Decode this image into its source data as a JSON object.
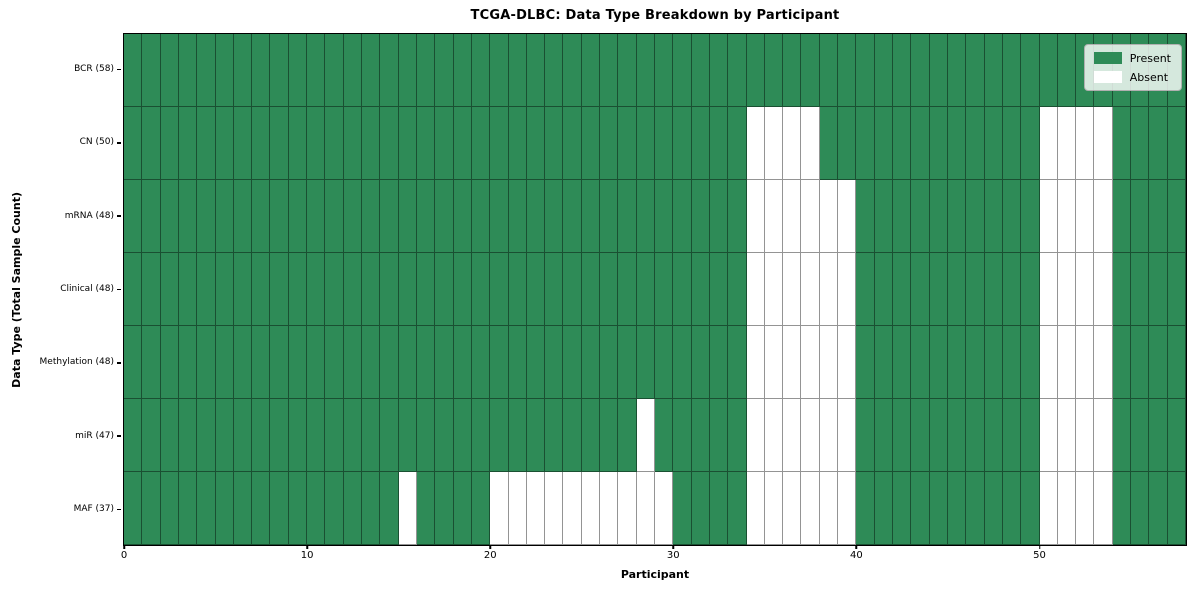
{
  "chart_data": {
    "type": "heatmap",
    "title": "TCGA-DLBC: Data Type Breakdown by Participant",
    "xlabel": "Participant",
    "ylabel": "Data Type (Total Sample Count)",
    "n_participants": 58,
    "x_range": [
      0,
      58
    ],
    "x_ticks": [
      0,
      10,
      20,
      30,
      40,
      50
    ],
    "grid": true,
    "legend_position": "upper right",
    "cell_states": [
      "Present",
      "Absent"
    ],
    "rows": [
      {
        "label": "BCR (58)",
        "total_samples": 58,
        "absent_participants": []
      },
      {
        "label": "CN (50)",
        "total_samples": 50,
        "absent_participants": [
          34,
          35,
          36,
          37,
          50,
          51,
          52,
          53
        ]
      },
      {
        "label": "mRNA (48)",
        "total_samples": 48,
        "absent_participants": [
          34,
          35,
          36,
          37,
          38,
          39,
          50,
          51,
          52,
          53
        ]
      },
      {
        "label": "Clinical (48)",
        "total_samples": 48,
        "absent_participants": [
          34,
          35,
          36,
          37,
          38,
          39,
          50,
          51,
          52,
          53
        ]
      },
      {
        "label": "Methylation (48)",
        "total_samples": 48,
        "absent_participants": [
          34,
          35,
          36,
          37,
          38,
          39,
          50,
          51,
          52,
          53
        ]
      },
      {
        "label": "miR (47)",
        "total_samples": 47,
        "absent_participants": [
          28,
          34,
          35,
          36,
          37,
          38,
          39,
          50,
          51,
          52,
          53
        ]
      },
      {
        "label": "MAF (37)",
        "total_samples": 37,
        "absent_participants": [
          15,
          20,
          21,
          22,
          23,
          24,
          25,
          26,
          27,
          28,
          29,
          34,
          35,
          36,
          37,
          38,
          39,
          50,
          51,
          52,
          53
        ]
      }
    ],
    "legend": [
      {
        "label": "Present",
        "color": "#2e8b57"
      },
      {
        "label": "Absent",
        "color": "#ffffff"
      }
    ],
    "colors": {
      "present": "#2e8b57",
      "absent": "#ffffff"
    }
  }
}
